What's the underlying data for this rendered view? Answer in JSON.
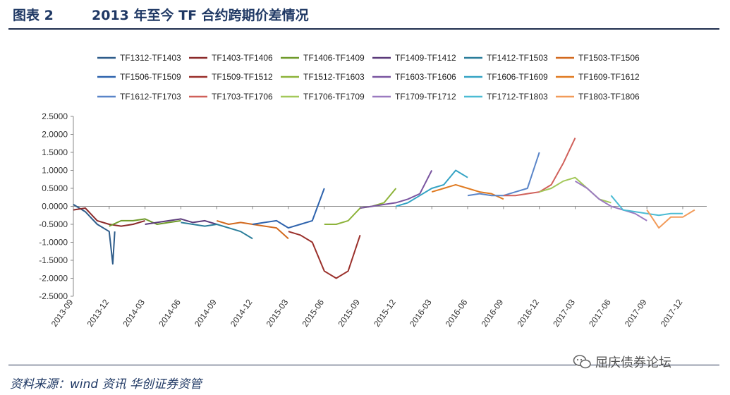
{
  "header": {
    "figure_label": "图表 2",
    "title": "2013 年至今 TF 合约跨期价差情况"
  },
  "footer": {
    "source": "资料来源：wind 资讯   华创证券资管",
    "watermark": "屈庆债券论坛"
  },
  "chart_data": {
    "type": "line",
    "title": "",
    "xlabel": "",
    "ylabel": "",
    "ylim": [
      -2.5,
      2.5
    ],
    "y_ticks": [
      "2.5000",
      "2.0000",
      "1.5000",
      "1.0000",
      "0.5000",
      "0.0000",
      "-0.5000",
      "-1.0000",
      "-1.5000",
      "-2.0000",
      "-2.5000"
    ],
    "x_ticks": [
      "2013-09",
      "2013-12",
      "2014-03",
      "2014-06",
      "2014-09",
      "2014-12",
      "2015-03",
      "2015-06",
      "2015-09",
      "2015-12",
      "2016-03",
      "2016-06",
      "2016-09",
      "2016-12",
      "2017-03",
      "2017-06",
      "2017-09",
      "2017-12"
    ],
    "grid": false,
    "legend_position": "top",
    "series": [
      {
        "name": "TF1312-TF1403",
        "color": "#2e5c8a",
        "x": [
          "2013-09",
          "2013-10",
          "2013-11",
          "2013-12",
          "2013-12-10",
          "2013-12-15"
        ],
        "values": [
          0.05,
          -0.15,
          -0.5,
          -0.7,
          -1.6,
          -0.7
        ]
      },
      {
        "name": "TF1403-TF1406",
        "color": "#8b2a2a",
        "x": [
          "2013-09",
          "2013-10",
          "2013-11",
          "2013-12",
          "2014-01",
          "2014-02",
          "2014-03"
        ],
        "values": [
          -0.1,
          -0.05,
          -0.4,
          -0.5,
          -0.55,
          -0.5,
          -0.4
        ]
      },
      {
        "name": "TF1406-TF1409",
        "color": "#6f9a2a",
        "x": [
          "2013-12",
          "2014-01",
          "2014-02",
          "2014-03",
          "2014-04",
          "2014-05",
          "2014-06"
        ],
        "values": [
          -0.55,
          -0.4,
          -0.4,
          -0.35,
          -0.5,
          -0.45,
          -0.4
        ]
      },
      {
        "name": "TF1409-TF1412",
        "color": "#5b3a7a",
        "x": [
          "2014-03",
          "2014-04",
          "2014-05",
          "2014-06",
          "2014-07",
          "2014-08",
          "2014-09"
        ],
        "values": [
          -0.5,
          -0.45,
          -0.4,
          -0.35,
          -0.45,
          -0.4,
          -0.5
        ]
      },
      {
        "name": "TF1412-TF1503",
        "color": "#2a7d9a",
        "x": [
          "2014-06",
          "2014-07",
          "2014-08",
          "2014-09",
          "2014-10",
          "2014-11",
          "2014-12"
        ],
        "values": [
          -0.45,
          -0.5,
          -0.55,
          -0.5,
          -0.6,
          -0.7,
          -0.9
        ]
      },
      {
        "name": "TF1503-TF1506",
        "color": "#d2691e",
        "x": [
          "2014-09",
          "2014-10",
          "2014-11",
          "2014-12",
          "2015-01",
          "2015-02",
          "2015-03"
        ],
        "values": [
          -0.4,
          -0.5,
          -0.45,
          -0.5,
          -0.55,
          -0.6,
          -0.9
        ]
      },
      {
        "name": "TF1506-TF1509",
        "color": "#2e63ad",
        "x": [
          "2014-12",
          "2015-01",
          "2015-02",
          "2015-03",
          "2015-04",
          "2015-05",
          "2015-06"
        ],
        "values": [
          -0.5,
          -0.45,
          -0.4,
          -0.6,
          -0.5,
          -0.4,
          0.5
        ]
      },
      {
        "name": "TF1509-TF1512",
        "color": "#9a2f2a",
        "x": [
          "2015-03",
          "2015-04",
          "2015-05",
          "2015-06",
          "2015-07",
          "2015-08",
          "2015-09"
        ],
        "values": [
          -0.7,
          -0.8,
          -1.0,
          -1.8,
          -2.0,
          -1.8,
          -0.8
        ]
      },
      {
        "name": "TF1512-TF1603",
        "color": "#8db33a",
        "x": [
          "2015-06",
          "2015-07",
          "2015-08",
          "2015-09",
          "2015-10",
          "2015-11",
          "2015-12"
        ],
        "values": [
          -0.5,
          -0.5,
          -0.4,
          -0.05,
          0.0,
          0.1,
          0.5
        ]
      },
      {
        "name": "TF1603-TF1606",
        "color": "#7a55a0",
        "x": [
          "2015-09",
          "2015-10",
          "2015-11",
          "2015-12",
          "2016-01",
          "2016-02",
          "2016-03"
        ],
        "values": [
          -0.05,
          0.0,
          0.05,
          0.1,
          0.2,
          0.35,
          1.0
        ]
      },
      {
        "name": "TF1606-TF1609",
        "color": "#34a3c4",
        "x": [
          "2015-12",
          "2016-01",
          "2016-02",
          "2016-03",
          "2016-04",
          "2016-05",
          "2016-06"
        ],
        "values": [
          0.0,
          0.1,
          0.3,
          0.5,
          0.6,
          1.0,
          0.8
        ]
      },
      {
        "name": "TF1609-TF1612",
        "color": "#e07a20",
        "x": [
          "2016-03",
          "2016-04",
          "2016-05",
          "2016-06",
          "2016-07",
          "2016-08",
          "2016-09"
        ],
        "values": [
          0.4,
          0.5,
          0.6,
          0.5,
          0.4,
          0.35,
          0.2
        ]
      },
      {
        "name": "TF1612-TF1703",
        "color": "#5a85c8",
        "x": [
          "2016-06",
          "2016-07",
          "2016-08",
          "2016-09",
          "2016-10",
          "2016-11",
          "2016-12"
        ],
        "values": [
          0.3,
          0.35,
          0.3,
          0.3,
          0.4,
          0.5,
          1.5
        ]
      },
      {
        "name": "TF1703-TF1706",
        "color": "#d0605a",
        "x": [
          "2016-09",
          "2016-10",
          "2016-11",
          "2016-12",
          "2017-01",
          "2017-02",
          "2017-03"
        ],
        "values": [
          0.3,
          0.3,
          0.35,
          0.4,
          0.6,
          1.2,
          1.9
        ]
      },
      {
        "name": "TF1706-TF1709",
        "color": "#a3c85a",
        "x": [
          "2016-12",
          "2017-01",
          "2017-02",
          "2017-03",
          "2017-04",
          "2017-05",
          "2017-06"
        ],
        "values": [
          0.4,
          0.5,
          0.7,
          0.8,
          0.5,
          0.2,
          0.1
        ]
      },
      {
        "name": "TF1709-TF1712",
        "color": "#9b7ac0",
        "x": [
          "2017-03",
          "2017-04",
          "2017-05",
          "2017-06",
          "2017-07",
          "2017-08",
          "2017-09"
        ],
        "values": [
          0.7,
          0.5,
          0.2,
          0.0,
          -0.1,
          -0.2,
          -0.4
        ]
      },
      {
        "name": "TF1712-TF1803",
        "color": "#4cbcd4",
        "x": [
          "2017-06",
          "2017-07",
          "2017-08",
          "2017-09",
          "2017-10",
          "2017-11",
          "2017-12"
        ],
        "values": [
          0.3,
          -0.1,
          -0.15,
          -0.2,
          -0.25,
          -0.2,
          -0.2
        ]
      },
      {
        "name": "TF1803-TF1806",
        "color": "#f29b5a",
        "x": [
          "2017-09",
          "2017-10",
          "2017-11",
          "2017-12",
          "2018-01"
        ],
        "values": [
          -0.1,
          -0.6,
          -0.3,
          -0.3,
          -0.1
        ]
      }
    ]
  }
}
